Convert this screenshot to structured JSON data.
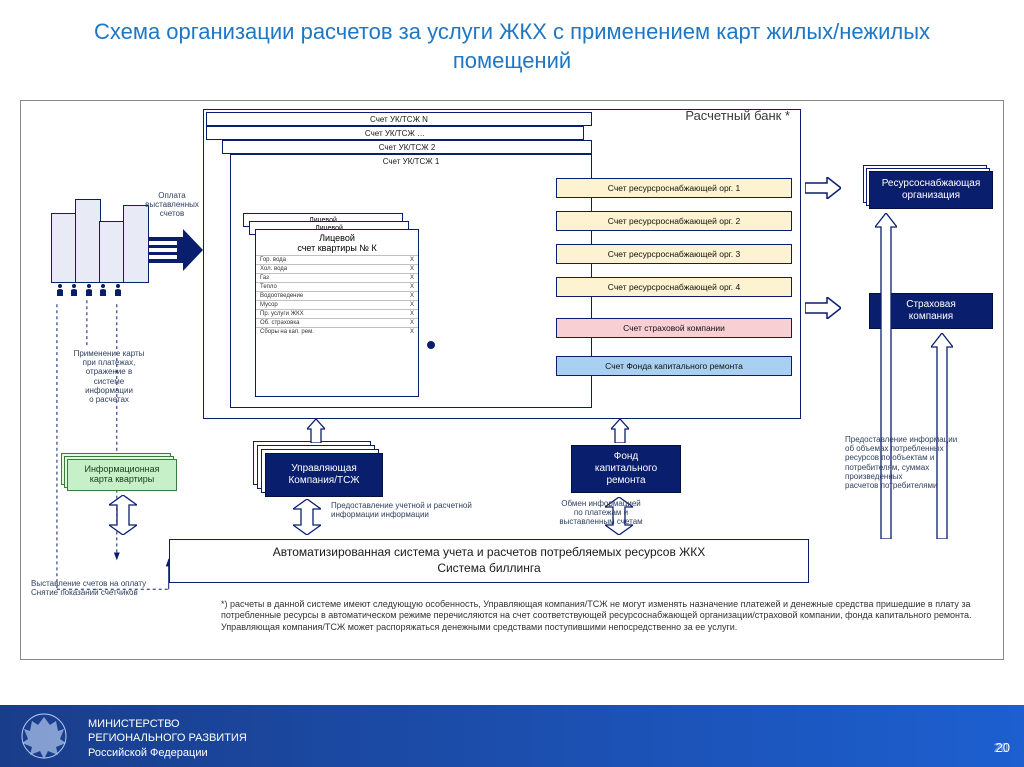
{
  "title": "Схема организации расчетов за услуги ЖКХ с применением карт жилых/нежилых помещений",
  "bank_label": "Расчетный банк *",
  "uk_tabs": [
    "Счет УК/ТСЖ N",
    "Счет УК/ТСЖ …",
    "Счет УК/ТСЖ 2",
    "Счет УК/ТСЖ 1"
  ],
  "apt_title_line1": "Лицевой",
  "apt_title_line2": "счет квартиры № К",
  "apt_back_title": "Лицевой",
  "services": [
    {
      "name": "Гор. вода",
      "val": "X"
    },
    {
      "name": "Хол. вода",
      "val": "X"
    },
    {
      "name": "Газ",
      "val": "X"
    },
    {
      "name": "Тепло",
      "val": "X"
    },
    {
      "name": "Водоотведение",
      "val": "X"
    },
    {
      "name": "Мусор",
      "val": "X"
    },
    {
      "name": "Пр. услуги ЖКХ",
      "val": "X"
    },
    {
      "name": "Об. страховка",
      "val": "X"
    },
    {
      "name": "Сборы на кап. рем.",
      "val": "X"
    }
  ],
  "acct_strips": [
    {
      "label": "Счет ресурсроснабжающей орг.  1",
      "fill": "#fdf3d0"
    },
    {
      "label": "Счет ресурсроснабжающей орг. 2",
      "fill": "#fdf3d0"
    },
    {
      "label": "Счет ресурсроснабжающей орг. 3",
      "fill": "#fdf3d0"
    },
    {
      "label": "Счет ресурсроснабжающей орг.  4",
      "fill": "#fdf3d0"
    },
    {
      "label": "Счет страховой компании",
      "fill": "#f8cfd3"
    },
    {
      "label": "Счет Фонда капитального ремонта",
      "fill": "#a9cff1"
    }
  ],
  "left_labels": {
    "payment": "Оплата\nвыставленных\nсчетов",
    "card_use": "Применение карты\nпри платежах,\nотражение в\nсистеме\nинформации\nо расчетах",
    "info_card": "Информационная\nкарта квартиры",
    "bills_meters": "Выставление счетов на оплату\nСнятие показаний счетчиков"
  },
  "center_labels": {
    "company": "Управляющая\nКомпания/ТСЖ",
    "accounting_info": "Предоставление учетной и расчетной\nинформации информации",
    "fund": "Фонд\nкапитального\nремонта",
    "exchange": "Обмен информацией\nпо платежам и\nвыставленным счетам"
  },
  "right_boxes": {
    "resource_org": "Ресурсоснабжающая\nорганизация",
    "insurance": "Страховая\nкомпания",
    "provision_info": "Предоставление информации\nоб объемах потребленных\nресурсов по объектам и\nпотребителям, суммах\nпроизведенных\nрасчетов потребителями"
  },
  "billing": {
    "line1": "Автоматизированная система учета и расчетов потребляемых ресурсов ЖКХ",
    "line2": "Система биллинга"
  },
  "footnote": "*) расчеты в данной системе имеют следующую особенность, Управляющая компания/ТСЖ не могут изменять назначение платежей и денежные средства пришедшие в плату за потребленные ресурсы в автоматическом режиме перечисляются на счет соответствующей ресурсоснабжающей  организации/страховой компании, фонда капитального ремонта. Управляющая компания/ТСЖ может распоряжаться денежными средствами поступившими непосредственно за ее услуги.",
  "footer": {
    "line1": "МИНИСТЕРСТВО",
    "line2": "РЕГИОНАЛЬНОГО РАЗВИТИЯ",
    "line3": "Российской Федерации"
  },
  "slide_number": "20",
  "colors": {
    "dark": "#0a1e6e",
    "title": "#1f77c4",
    "arrow_fill": "#0a1e6e",
    "outline_arrow": "#123b8a"
  }
}
